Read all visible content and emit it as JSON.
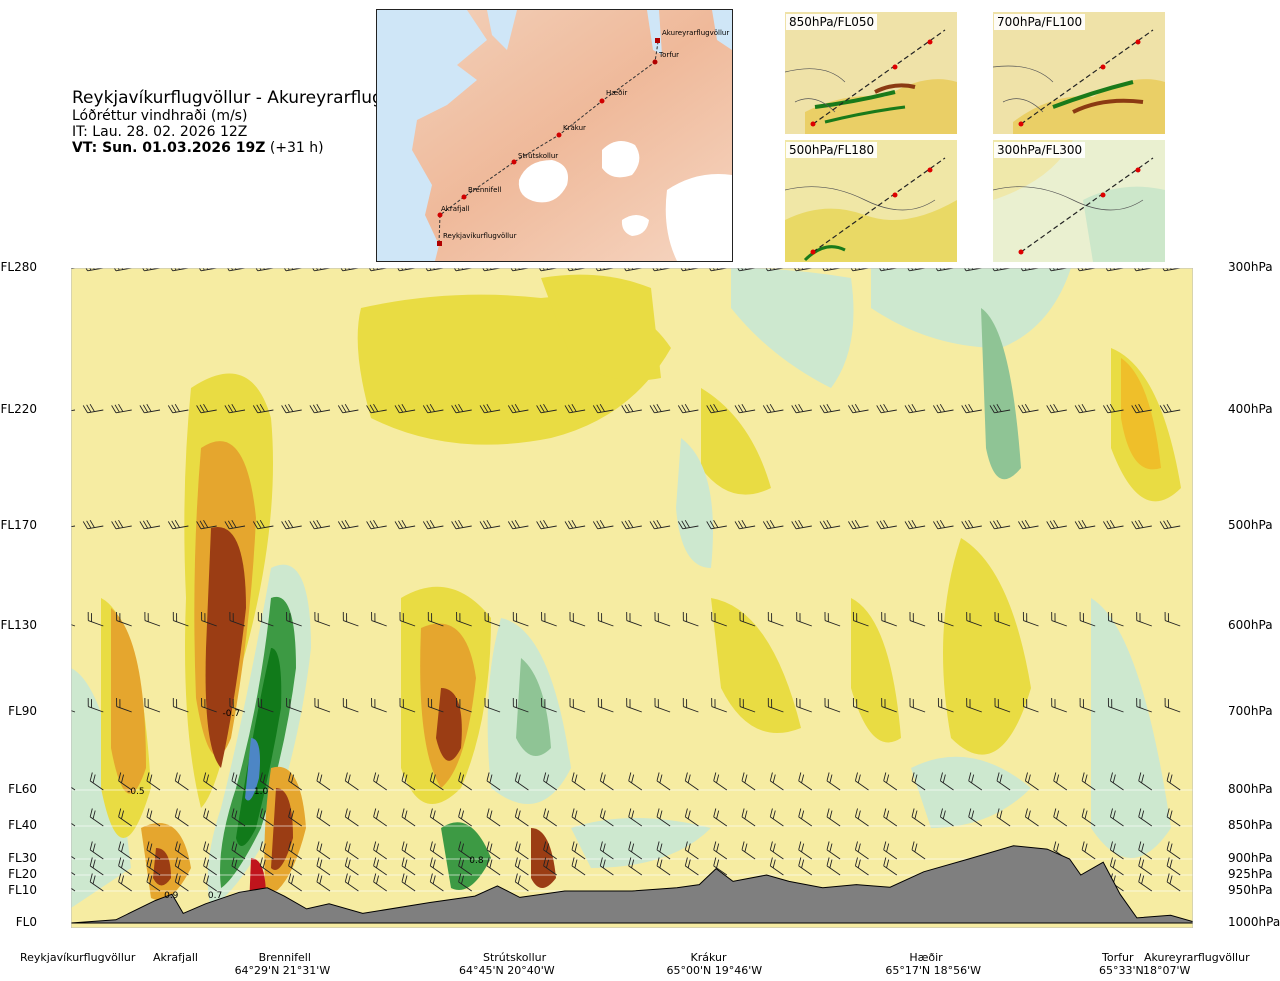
{
  "header": {
    "title": "Reykjavíkurflugvöllur - Akureyrarflugvöllur",
    "subtitle": "Lóðréttur vindhraði (m/s)",
    "it_line": "IT: Lau. 28. 02. 2026 12Z",
    "vt_bold": "VT: Sun. 01.03.2026 19Z",
    "vt_offset": " (+31 h)"
  },
  "route_map": {
    "points": [
      "Akureyrarflugvöllur",
      "Torfur",
      "Hæðir",
      "Krákur",
      "Strútskollur",
      "Brennifell",
      "Akrafjall",
      "Reykjavíkurflugvöllur"
    ]
  },
  "panels": [
    {
      "label": "850hPa/FL050"
    },
    {
      "label": "700hPa/FL100"
    },
    {
      "label": "500hPa/FL180"
    },
    {
      "label": "300hPa/FL300"
    }
  ],
  "chart_data": {
    "type": "heatmap",
    "title": "Lóðréttur vindhraði (m/s)",
    "left_axis_levels": [
      "FL280",
      "FL220",
      "FL170",
      "FL130",
      "FL90",
      "FL60",
      "FL40",
      "FL30",
      "FL20",
      "FL10",
      "FL0"
    ],
    "right_axis_levels": [
      "300hPa",
      "400hPa",
      "500hPa",
      "600hPa",
      "700hPa",
      "800hPa",
      "850hPa",
      "900hPa",
      "925hPa",
      "950hPa",
      "1000hPa"
    ],
    "pressure_levels_hpa": [
      300,
      400,
      500,
      600,
      700,
      800,
      850,
      900,
      925,
      950,
      1000
    ],
    "locations": [
      {
        "name": "Reykjavíkurflugvöllur",
        "coord": "",
        "distance_frac": 0.0
      },
      {
        "name": "Akrafjall",
        "coord": "",
        "distance_frac": 0.085
      },
      {
        "name": "Brennifell",
        "coord": "64°29'N 21°31'W",
        "distance_frac": 0.185
      },
      {
        "name": "Strútskollur",
        "coord": "64°45'N 20°40'W",
        "distance_frac": 0.385
      },
      {
        "name": "Krákur",
        "coord": "65°00'N 19°46'W",
        "distance_frac": 0.57
      },
      {
        "name": "Hæðir",
        "coord": "65°17'N 18°56'W",
        "distance_frac": 0.765
      },
      {
        "name": "Torfur",
        "coord": "65°33'N",
        "distance_frac": 0.935
      },
      {
        "name": "Akureyrarflugvöllur",
        "coord": "18°07'W",
        "distance_frac": 1.0
      }
    ],
    "contour_labels": [
      {
        "text": "-0.7",
        "x_frac": 0.135,
        "level_hpa": 700
      },
      {
        "text": "-0.5",
        "x_frac": 0.05,
        "level_hpa": 800
      },
      {
        "text": "1.0",
        "x_frac": 0.163,
        "level_hpa": 800
      },
      {
        "text": "0.8",
        "x_frac": 0.355,
        "level_hpa": 900
      },
      {
        "text": "0.9",
        "x_frac": 0.083,
        "level_hpa": 955
      },
      {
        "text": "0.7",
        "x_frac": 0.122,
        "level_hpa": 955
      }
    ],
    "terrain_profile_hpa": [
      [
        0.0,
        1000
      ],
      [
        0.04,
        995
      ],
      [
        0.075,
        965
      ],
      [
        0.09,
        955
      ],
      [
        0.1,
        985
      ],
      [
        0.12,
        970
      ],
      [
        0.15,
        952
      ],
      [
        0.175,
        945
      ],
      [
        0.19,
        958
      ],
      [
        0.21,
        978
      ],
      [
        0.23,
        970
      ],
      [
        0.26,
        985
      ],
      [
        0.32,
        968
      ],
      [
        0.36,
        958
      ],
      [
        0.38,
        942
      ],
      [
        0.4,
        960
      ],
      [
        0.42,
        955
      ],
      [
        0.44,
        950
      ],
      [
        0.5,
        950
      ],
      [
        0.54,
        945
      ],
      [
        0.56,
        940
      ],
      [
        0.575,
        915
      ],
      [
        0.59,
        935
      ],
      [
        0.62,
        925
      ],
      [
        0.64,
        935
      ],
      [
        0.67,
        945
      ],
      [
        0.7,
        940
      ],
      [
        0.73,
        944
      ],
      [
        0.76,
        920
      ],
      [
        0.8,
        900
      ],
      [
        0.84,
        880
      ],
      [
        0.87,
        885
      ],
      [
        0.89,
        900
      ],
      [
        0.9,
        925
      ],
      [
        0.92,
        905
      ],
      [
        0.935,
        955
      ],
      [
        0.95,
        992
      ],
      [
        0.98,
        988
      ],
      [
        1.0,
        998
      ]
    ],
    "wind_barb_levels_hpa": [
      300,
      400,
      500,
      600,
      700,
      800,
      850,
      900,
      925,
      950
    ],
    "grid": false
  }
}
